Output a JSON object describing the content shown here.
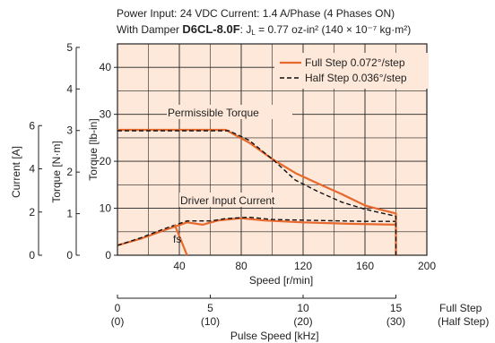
{
  "header": {
    "line1": "Power Input: 24 VDC    Current: 1.4 A/Phase (4 Phases ON)",
    "line2_prefix": "With Damper ",
    "line2_model": "D6CL-8.0F",
    "line2_suffix": ": J",
    "line2_sub": "L",
    "line2_rest": " = 0.77 oz-in² (140 × 10⁻⁷ kg·m²)"
  },
  "chart_data": {
    "type": "line",
    "xlabel": "Speed [r/min]",
    "xlim": [
      0,
      200
    ],
    "x_ticks": [
      40,
      80,
      120,
      160,
      200
    ],
    "ylabel": "Torque [lb-in]",
    "ylim": [
      0,
      45
    ],
    "y_ticks": [
      0,
      10,
      20,
      30,
      40
    ],
    "secondary_axes": [
      {
        "label": "Torque [N·m]",
        "range": [
          0,
          5
        ],
        "ticks": [
          0,
          1,
          2,
          3,
          4,
          5
        ]
      },
      {
        "label": "Current [A]",
        "range": [
          0,
          6
        ],
        "ticks": [
          0,
          2,
          4,
          6
        ]
      }
    ],
    "bottom_axis": {
      "label": "Pulse Speed [kHz]",
      "full_step_label": "Full Step",
      "half_step_label": "(Half Step)",
      "full_ticks": [
        "0",
        "5",
        "10",
        "15"
      ],
      "half_ticks": [
        "(0)",
        "(10)",
        "(20)",
        "(30)"
      ],
      "full_values": [
        0,
        5,
        10,
        15
      ]
    },
    "series": [
      {
        "name": "Full Step 0.072°/step",
        "color": "#e8692d",
        "style": "solid",
        "torque": [
          [
            0,
            26.7
          ],
          [
            70,
            26.7
          ],
          [
            85,
            24
          ],
          [
            100,
            20.5
          ],
          [
            115,
            17.5
          ],
          [
            130,
            15.2
          ],
          [
            145,
            13
          ],
          [
            160,
            10.6
          ],
          [
            170,
            9.7
          ],
          [
            180,
            8.9
          ],
          [
            180,
            0
          ]
        ],
        "current": [
          [
            0,
            2.1
          ],
          [
            15,
            3.5
          ],
          [
            30,
            5.3
          ],
          [
            45,
            7.0
          ],
          [
            55,
            6.5
          ],
          [
            65,
            7.4
          ],
          [
            80,
            7.9
          ],
          [
            95,
            7.4
          ],
          [
            120,
            7.0
          ],
          [
            150,
            6.7
          ],
          [
            180,
            6.5
          ]
        ]
      },
      {
        "name": "Half Step 0.036°/step",
        "color": "#111111",
        "style": "dashed",
        "torque": [
          [
            0,
            26.5
          ],
          [
            72,
            26.5
          ],
          [
            85,
            24.5
          ],
          [
            100,
            20.5
          ],
          [
            115,
            16
          ],
          [
            130,
            13.5
          ],
          [
            145,
            11.3
          ],
          [
            160,
            9.8
          ],
          [
            180,
            8.3
          ],
          [
            180,
            0
          ]
        ],
        "current": [
          [
            0,
            2.1
          ],
          [
            15,
            3.7
          ],
          [
            30,
            5.6
          ],
          [
            45,
            7.3
          ],
          [
            60,
            7.3
          ],
          [
            70,
            7.8
          ],
          [
            85,
            8.1
          ],
          [
            100,
            7.6
          ],
          [
            130,
            7.4
          ],
          [
            160,
            7.2
          ],
          [
            180,
            7.2
          ]
        ]
      }
    ],
    "annotations": {
      "torque_label": "Permissible Torque",
      "current_label": "Driver Input Current",
      "fs_label": "fs"
    },
    "fs_line": [
      [
        37,
        6.5
      ],
      [
        45,
        0
      ]
    ],
    "grid": true,
    "background": "#fde8d9",
    "legend": "top-right"
  }
}
